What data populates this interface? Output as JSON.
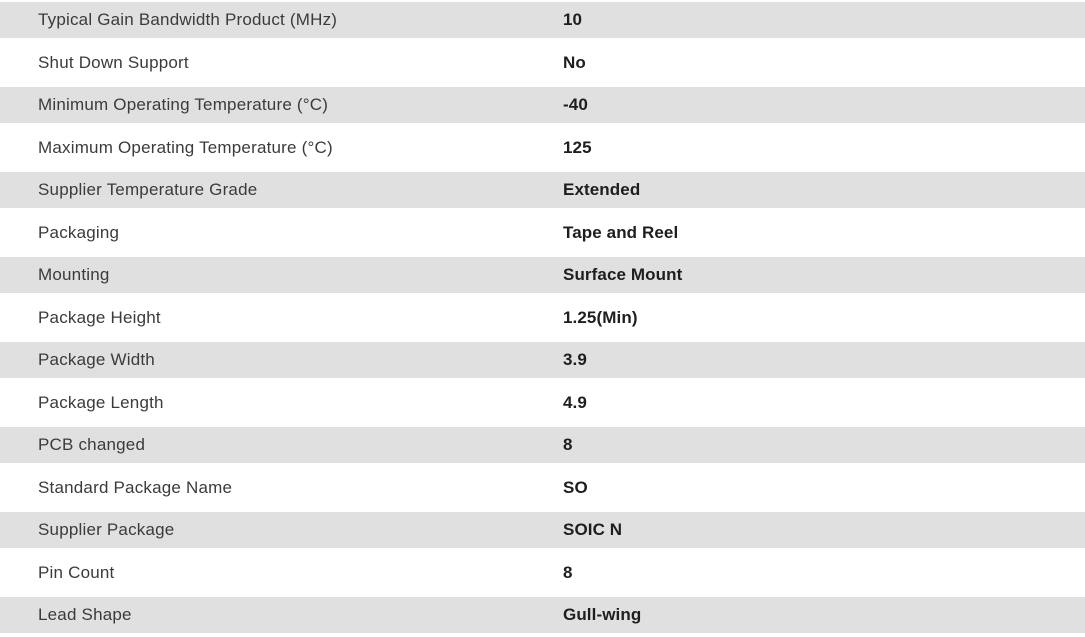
{
  "table": {
    "rows": [
      {
        "label": "Typical Gain Bandwidth Product (MHz)",
        "value": "10"
      },
      {
        "label": "Shut Down Support",
        "value": "No"
      },
      {
        "label": "Minimum Operating Temperature (°C)",
        "value": "-40"
      },
      {
        "label": "Maximum Operating Temperature (°C)",
        "value": "125"
      },
      {
        "label": "Supplier Temperature Grade",
        "value": "Extended"
      },
      {
        "label": "Packaging",
        "value": "Tape and Reel"
      },
      {
        "label": "Mounting",
        "value": "Surface Mount"
      },
      {
        "label": "Package Height",
        "value": "1.25(Min)"
      },
      {
        "label": "Package Width",
        "value": "3.9"
      },
      {
        "label": "Package Length",
        "value": "4.9"
      },
      {
        "label": "PCB changed",
        "value": "8"
      },
      {
        "label": "Standard Package Name",
        "value": "SO"
      },
      {
        "label": "Supplier Package",
        "value": "SOIC N"
      },
      {
        "label": "Pin Count",
        "value": "8"
      },
      {
        "label": "Lead Shape",
        "value": "Gull-wing"
      }
    ],
    "colors": {
      "row_alt_bg": "#e0e0e0",
      "row_bg": "#ffffff",
      "label_color": "#3b3b3b",
      "value_color": "#1e1e1e"
    }
  }
}
